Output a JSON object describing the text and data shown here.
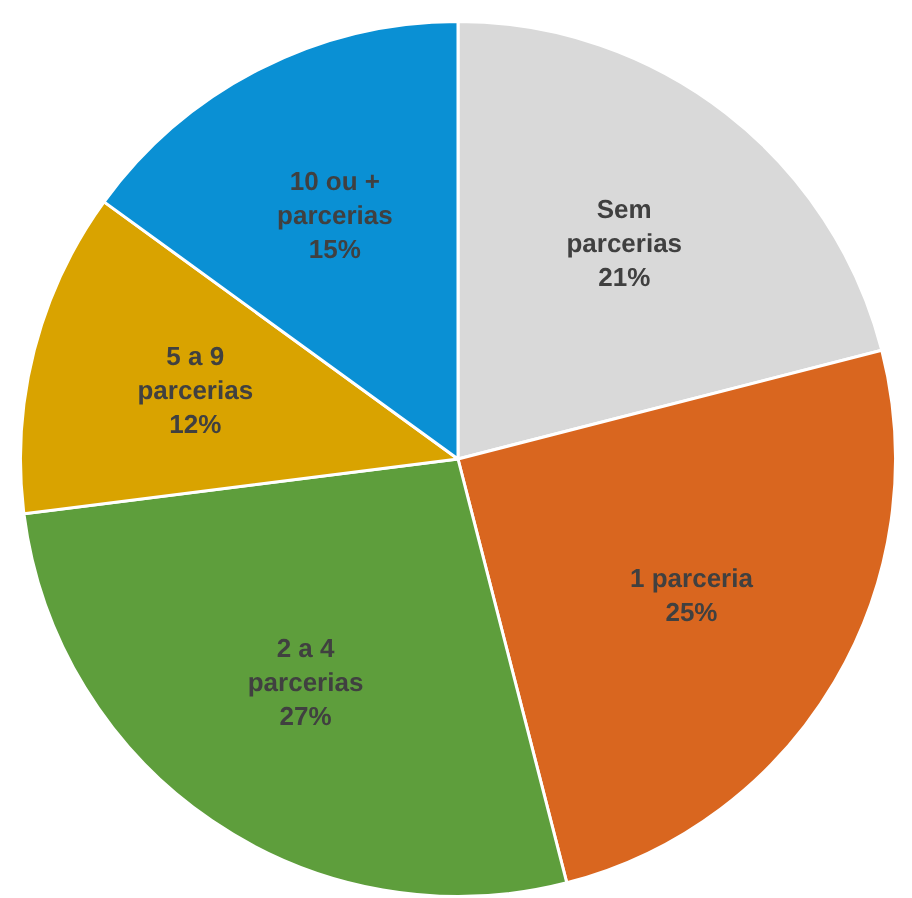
{
  "chart_data": {
    "type": "pie",
    "categories": [
      "Sem parcerias",
      "1 parceria",
      "2 a 4 parcerias",
      "5 a 9 parcerias",
      "10 ou + parcerias"
    ],
    "values": [
      21,
      25,
      27,
      12,
      15
    ],
    "colors": [
      "#d9d9d9",
      "#d9661f",
      "#5e9e3c",
      "#d9a300",
      "#0a90d4"
    ],
    "value_labels": [
      "21%",
      "25%",
      "27%",
      "12%",
      "15%"
    ],
    "legend": false
  }
}
